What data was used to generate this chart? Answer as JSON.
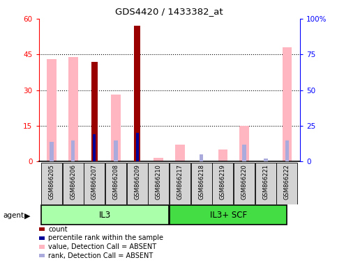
{
  "title": "GDS4420 / 1433382_at",
  "samples": [
    "GSM866205",
    "GSM866206",
    "GSM866207",
    "GSM866208",
    "GSM866209",
    "GSM866210",
    "GSM866217",
    "GSM866218",
    "GSM866219",
    "GSM866220",
    "GSM866221",
    "GSM866222"
  ],
  "count_values": [
    null,
    null,
    42,
    null,
    57,
    null,
    null,
    null,
    null,
    null,
    null,
    null
  ],
  "rank_values": [
    null,
    null,
    19,
    null,
    20,
    null,
    null,
    null,
    null,
    null,
    null,
    null
  ],
  "value_absent": [
    43,
    44,
    null,
    28,
    null,
    1.5,
    7,
    null,
    5,
    15,
    null,
    48
  ],
  "rank_absent": [
    14,
    15,
    null,
    15,
    null,
    null,
    null,
    5,
    null,
    12,
    2,
    15
  ],
  "ylim": [
    0,
    60
  ],
  "yticks": [
    0,
    15,
    30,
    45,
    60
  ],
  "ytick_labels_left": [
    "0",
    "15",
    "30",
    "45",
    "60"
  ],
  "ytick_labels_right": [
    "0",
    "25",
    "50",
    "75",
    "100%"
  ],
  "color_count": "#990000",
  "color_rank": "#000099",
  "color_value_absent": "#FFB6C1",
  "color_rank_absent": "#AAAADD",
  "il3_color": "#AAFFAA",
  "scf_color": "#44DD44",
  "bg_color": "#FFFFFF"
}
